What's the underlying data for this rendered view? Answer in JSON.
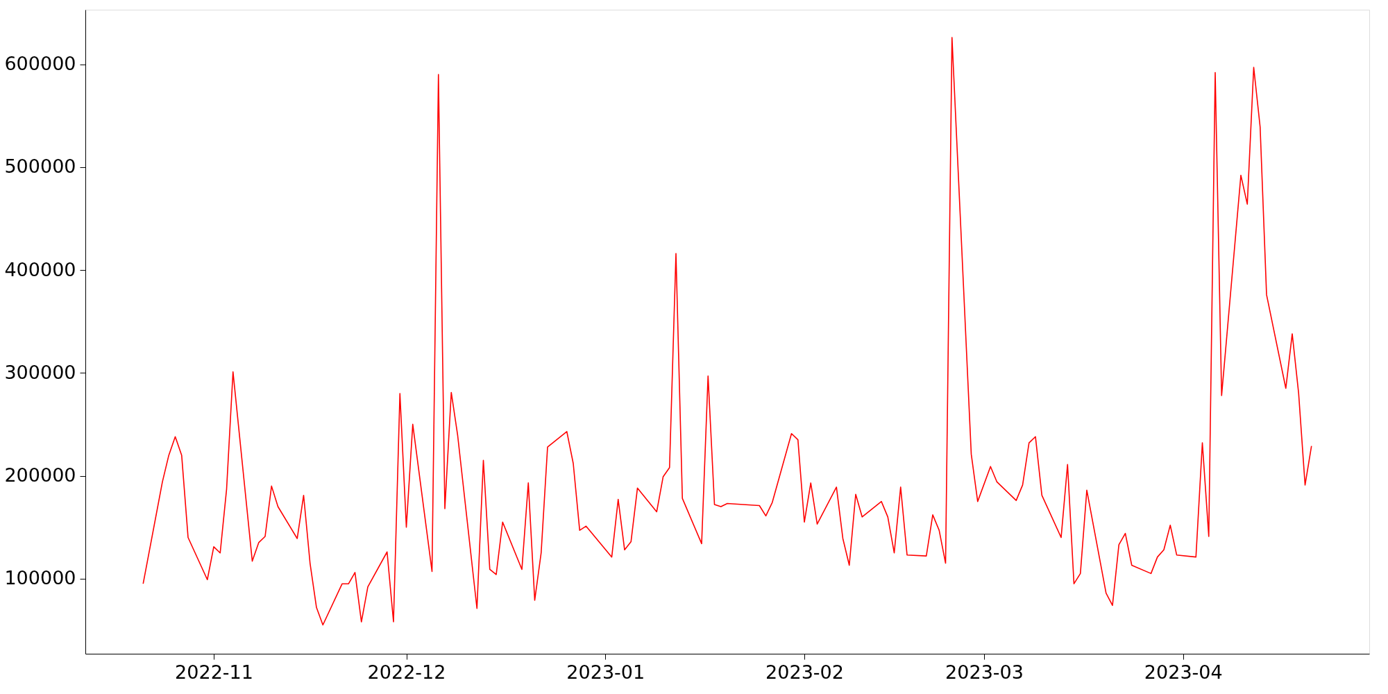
{
  "chart_data": {
    "type": "line",
    "x": [
      "2022-10-21",
      "2022-10-24",
      "2022-10-25",
      "2022-10-26",
      "2022-10-27",
      "2022-10-28",
      "2022-10-31",
      "2022-11-01",
      "2022-11-02",
      "2022-11-03",
      "2022-11-04",
      "2022-11-07",
      "2022-11-08",
      "2022-11-09",
      "2022-11-10",
      "2022-11-11",
      "2022-11-14",
      "2022-11-15",
      "2022-11-16",
      "2022-11-17",
      "2022-11-18",
      "2022-11-21",
      "2022-11-22",
      "2022-11-23",
      "2022-11-24",
      "2022-11-25",
      "2022-11-28",
      "2022-11-29",
      "2022-11-30",
      "2022-12-01",
      "2022-12-02",
      "2022-12-05",
      "2022-12-06",
      "2022-12-07",
      "2022-12-08",
      "2022-12-09",
      "2022-12-12",
      "2022-12-13",
      "2022-12-14",
      "2022-12-15",
      "2022-12-16",
      "2022-12-19",
      "2022-12-20",
      "2022-12-21",
      "2022-12-22",
      "2022-12-23",
      "2022-12-26",
      "2022-12-27",
      "2022-12-28",
      "2022-12-29",
      "2023-01-02",
      "2023-01-03",
      "2023-01-04",
      "2023-01-05",
      "2023-01-06",
      "2023-01-09",
      "2023-01-10",
      "2023-01-11",
      "2023-01-12",
      "2023-01-13",
      "2023-01-16",
      "2023-01-17",
      "2023-01-18",
      "2023-01-19",
      "2023-01-20",
      "2023-01-25",
      "2023-01-26",
      "2023-01-27",
      "2023-01-30",
      "2023-01-31",
      "2023-02-01",
      "2023-02-02",
      "2023-02-03",
      "2023-02-06",
      "2023-02-07",
      "2023-02-08",
      "2023-02-09",
      "2023-02-10",
      "2023-02-13",
      "2023-02-14",
      "2023-02-15",
      "2023-02-16",
      "2023-02-17",
      "2023-02-20",
      "2023-02-21",
      "2023-02-22",
      "2023-02-23",
      "2023-02-24",
      "2023-02-27",
      "2023-02-28",
      "2023-03-02",
      "2023-03-03",
      "2023-03-06",
      "2023-03-07",
      "2023-03-08",
      "2023-03-09",
      "2023-03-10",
      "2023-03-13",
      "2023-03-14",
      "2023-03-15",
      "2023-03-16",
      "2023-03-17",
      "2023-03-20",
      "2023-03-21",
      "2023-03-22",
      "2023-03-23",
      "2023-03-24",
      "2023-03-27",
      "2023-03-28",
      "2023-03-29",
      "2023-03-30",
      "2023-03-31",
      "2023-04-03",
      "2023-04-04",
      "2023-04-05",
      "2023-04-06",
      "2023-04-07",
      "2023-04-10",
      "2023-04-11",
      "2023-04-12",
      "2023-04-13",
      "2023-04-14",
      "2023-04-17",
      "2023-04-18",
      "2023-04-19",
      "2023-04-20",
      "2023-04-21"
    ],
    "series": [
      {
        "color": "#ff0000",
        "values": [
          95000,
          194000,
          220000,
          238000,
          220000,
          140000,
          99000,
          131000,
          125000,
          187000,
          301000,
          117000,
          135000,
          141000,
          190000,
          170000,
          139000,
          181000,
          115000,
          72000,
          55000,
          95000,
          95000,
          106000,
          58000,
          92000,
          126000,
          58000,
          280000,
          150000,
          250000,
          107000,
          590000,
          168000,
          281000,
          239000,
          71000,
          215000,
          109000,
          104000,
          155000,
          109000,
          193000,
          79000,
          125000,
          228000,
          243000,
          212000,
          147000,
          151000,
          121000,
          177000,
          128000,
          136000,
          188000,
          165000,
          199000,
          208000,
          416000,
          178000,
          134000,
          297000,
          172000,
          170000,
          173000,
          171000,
          161000,
          174000,
          241000,
          235000,
          155000,
          193000,
          153000,
          189000,
          139000,
          113000,
          182000,
          160000,
          175000,
          160000,
          125000,
          189000,
          123000,
          122000,
          162000,
          147000,
          115000,
          626000,
          221000,
          175000,
          209000,
          194000,
          176000,
          191000,
          232000,
          238000,
          181000,
          140000,
          211000,
          95000,
          105000,
          186000,
          86000,
          74000,
          133000,
          144000,
          113000,
          105000,
          121000,
          128000,
          152000,
          123000,
          121000,
          232000,
          141000,
          592000,
          278000,
          492000,
          464000,
          597000,
          539000,
          376000,
          285000,
          338000,
          280000,
          191000,
          229000
        ]
      }
    ],
    "xlim": [
      "2022-10-12",
      "2023-04-30"
    ],
    "xticks": [
      {
        "value": "2022-11-01",
        "label": "2022-11"
      },
      {
        "value": "2022-12-01",
        "label": "2022-12"
      },
      {
        "value": "2023-01-01",
        "label": "2023-01"
      },
      {
        "value": "2023-02-01",
        "label": "2023-02"
      },
      {
        "value": "2023-03-01",
        "label": "2023-03"
      },
      {
        "value": "2023-04-01",
        "label": "2023-04"
      }
    ],
    "ylim": [
      27000,
      653000
    ],
    "yticks": [
      100000,
      200000,
      300000,
      400000,
      500000,
      600000
    ],
    "grid": false,
    "legend": false,
    "marker": "none",
    "line_style": "solid"
  }
}
